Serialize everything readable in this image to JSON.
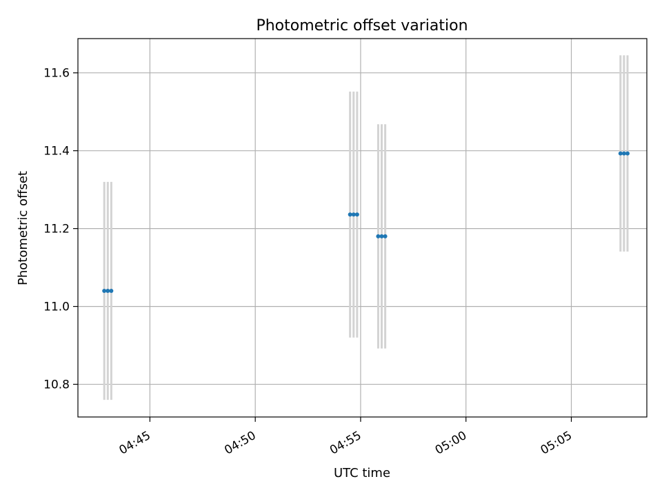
{
  "chart_data": {
    "type": "scatter",
    "title": "Photometric offset variation",
    "xlabel": "UTC time",
    "ylabel": "Photometric offset",
    "x_axis": "time (UTC)",
    "xlim": [
      "04:41:35",
      "05:08:35"
    ],
    "ylim": [
      10.716,
      11.688
    ],
    "xticks": [
      "04:45",
      "04:50",
      "04:55",
      "05:00",
      "05:05"
    ],
    "yticks": [
      "10.8",
      "11.0",
      "11.2",
      "11.4",
      "11.6"
    ],
    "grid": true,
    "point_color": "#1f77b4",
    "errorbar_color": "#d3d3d3",
    "groups": [
      {
        "times": [
          "04:42:50",
          "04:43:00",
          "04:43:10"
        ],
        "y": 11.04,
        "err": 0.28
      },
      {
        "times": [
          "04:54:30",
          "04:54:40",
          "04:54:50"
        ],
        "y": 11.236,
        "err": 0.316
      },
      {
        "times": [
          "04:55:50",
          "04:56:00",
          "04:56:10"
        ],
        "y": 11.18,
        "err": 0.288
      },
      {
        "times": [
          "05:07:20",
          "05:07:30",
          "05:07:40"
        ],
        "y": 11.393,
        "err": 0.252
      }
    ]
  }
}
